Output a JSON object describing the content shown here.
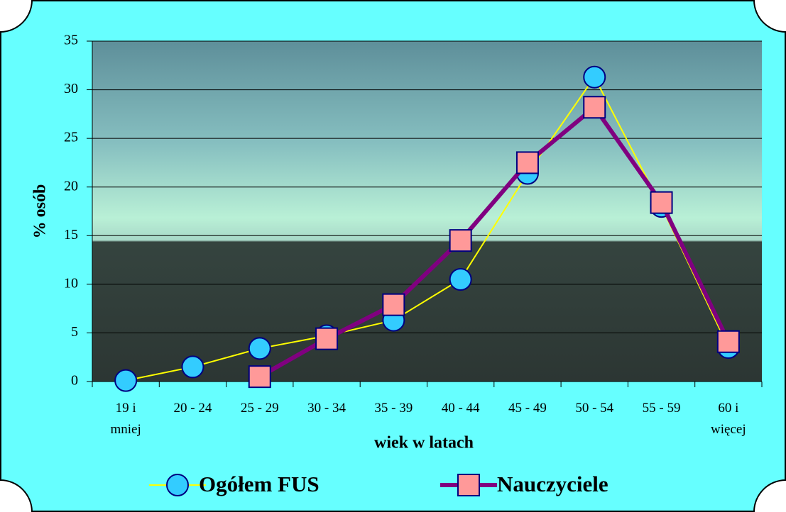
{
  "chart_data": {
    "type": "line",
    "categories": [
      "19 i\nmniej",
      "20 - 24",
      "25 - 29",
      "30 - 34",
      "35 - 39",
      "40 - 44",
      "45 - 49",
      "50 - 54",
      "55 - 59",
      "60 i\nwięcej"
    ],
    "series": [
      {
        "name": "Ogółem FUS",
        "color": "#ffff00",
        "marker": "circle",
        "marker_color": "#33ccff",
        "values": [
          0.1,
          1.5,
          3.4,
          4.7,
          6.3,
          10.5,
          21.4,
          31.3,
          18.0,
          3.5
        ]
      },
      {
        "name": "Nauczyciele",
        "color": "#800080",
        "marker": "square",
        "marker_color": "#ff9999",
        "values": [
          null,
          null,
          0.5,
          4.4,
          7.9,
          14.5,
          22.5,
          28.2,
          18.4,
          4.1
        ]
      }
    ],
    "y_label": "% osób",
    "x_label": "wiek w latach",
    "ylim": [
      0,
      35
    ],
    "yticks": [
      0,
      5,
      10,
      15,
      20,
      25,
      30,
      35
    ],
    "grid": true
  }
}
